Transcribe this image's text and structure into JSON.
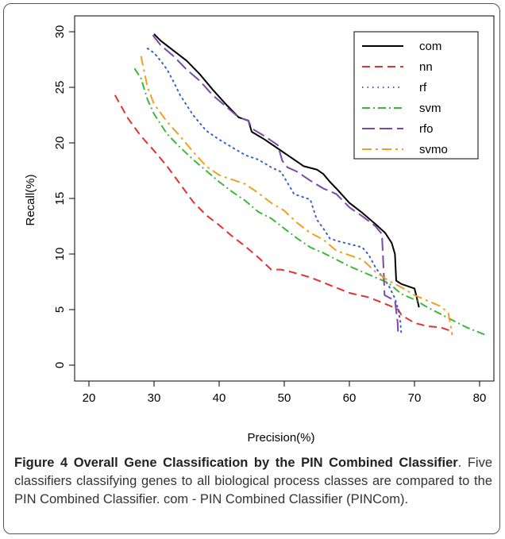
{
  "chart_data": {
    "type": "line",
    "xlabel": "Precision(%)",
    "ylabel": "Recall(%)",
    "xlim": [
      20,
      80
    ],
    "ylim": [
      0,
      30
    ],
    "x_ticks": [
      20,
      30,
      40,
      50,
      60,
      70,
      80
    ],
    "y_ticks": [
      0,
      5,
      10,
      15,
      20,
      25,
      30
    ],
    "legend_position": "top-right",
    "grid": false,
    "series": [
      {
        "name": "com",
        "color": "#000000",
        "dash": "solid",
        "x": [
          30,
          31,
          33,
          35,
          37,
          39,
          41,
          43,
          44.5,
          45,
          47,
          49,
          51,
          53,
          55,
          56,
          57,
          58,
          60,
          62,
          64,
          65.5,
          66.5,
          67,
          67.2,
          68,
          70,
          70.3,
          70.5,
          70.7
        ],
        "y": [
          29.8,
          29.2,
          28.3,
          27.4,
          26.2,
          24.8,
          23.5,
          22.3,
          22,
          21,
          20.3,
          19.5,
          18.7,
          17.9,
          17.6,
          17.2,
          16.5,
          15.9,
          14.6,
          13.7,
          12.7,
          11.9,
          11.0,
          10.0,
          7.6,
          7.3,
          6.9,
          6.2,
          5.7,
          5.2
        ]
      },
      {
        "name": "nn",
        "color": "#e53030",
        "dash": "10 6",
        "x": [
          24,
          26,
          28,
          30,
          32,
          34,
          36,
          38,
          40,
          42,
          44,
          46,
          48,
          49.5,
          51,
          54,
          57,
          60,
          63,
          66,
          67.5,
          68,
          70,
          72,
          74,
          76
        ],
        "y": [
          24.3,
          22.2,
          20.6,
          19.3,
          17.9,
          16.3,
          14.7,
          13.5,
          12.6,
          11.6,
          10.7,
          9.7,
          8.6,
          8.6,
          8.4,
          7.9,
          7.2,
          6.5,
          6.1,
          5.4,
          5.0,
          4.5,
          3.8,
          3.5,
          3.4,
          3.0
        ]
      },
      {
        "name": "rf",
        "color": "#3a5fcd",
        "dash": "1.5 5",
        "x": [
          29,
          30,
          31,
          32,
          33,
          34,
          36,
          38,
          40,
          42,
          44,
          46,
          48,
          49.5,
          50.5,
          51.5,
          52.5,
          54,
          55,
          56,
          57,
          58,
          60,
          62,
          63,
          64,
          65,
          66,
          67,
          67.5,
          67.8,
          68
        ],
        "y": [
          28.5,
          28.1,
          27.4,
          26.6,
          25.5,
          24.3,
          22.5,
          21.1,
          20.3,
          19.6,
          18.9,
          18.5,
          17.8,
          17.4,
          16.4,
          15.4,
          15.2,
          14.9,
          13.1,
          12.3,
          11.4,
          11.2,
          10.9,
          10.6,
          9.9,
          8.8,
          8.0,
          7.2,
          6.0,
          5.0,
          4.0,
          2.7
        ]
      },
      {
        "name": "svm",
        "color": "#3cb93c",
        "dash": "10 4 2 4",
        "x": [
          27,
          28,
          29,
          30,
          32,
          34,
          36,
          38,
          40,
          42,
          44,
          46,
          48,
          50,
          52,
          54,
          56,
          58,
          60,
          62,
          64,
          66,
          68,
          70,
          72,
          74,
          76,
          78,
          81
        ],
        "y": [
          26.7,
          25.8,
          23.9,
          22.6,
          20.8,
          19.6,
          18.5,
          17.5,
          16.5,
          15.6,
          14.8,
          13.8,
          13.2,
          12.3,
          11.4,
          10.6,
          10.1,
          9.5,
          8.9,
          8.4,
          7.9,
          7.4,
          6.4,
          5.9,
          5.2,
          4.6,
          4.0,
          3.4,
          2.7
        ]
      },
      {
        "name": "rfo",
        "color": "#7b48a8",
        "dash": "16 6",
        "x": [
          29.8,
          31,
          33,
          35,
          37,
          39,
          41,
          43,
          44.5,
          45,
          47,
          49,
          49.7,
          50.5,
          52,
          54,
          56,
          58,
          60,
          62,
          64,
          65,
          65.3,
          65.4,
          67,
          67.4,
          67.5
        ],
        "y": [
          29.7,
          28.8,
          27.8,
          26.6,
          25.6,
          24.3,
          23.3,
          22.3,
          22.0,
          21.3,
          20.6,
          19.8,
          18.4,
          17.8,
          17.4,
          16.6,
          15.9,
          15.4,
          14.2,
          13.4,
          12.5,
          11.8,
          8.0,
          6.3,
          5.8,
          3.9,
          2.7
        ]
      },
      {
        "name": "svmo",
        "color": "#f0a020",
        "dash": "12 5 3 5",
        "x": [
          28,
          29,
          30,
          32,
          34,
          36,
          38,
          40,
          42,
          44,
          46,
          48,
          50,
          52,
          54,
          56,
          58,
          60,
          62,
          64,
          66,
          68,
          70,
          72,
          74,
          75.2,
          75.5,
          75.8
        ],
        "y": [
          27.8,
          25.0,
          23.5,
          21.9,
          20.6,
          19.2,
          17.9,
          17.1,
          16.7,
          16.3,
          15.5,
          14.6,
          13.9,
          12.8,
          11.9,
          11.3,
          10.3,
          9.9,
          9.5,
          8.4,
          7.6,
          7.0,
          6.3,
          5.8,
          5.3,
          4.7,
          3.7,
          2.7
        ]
      }
    ]
  },
  "caption": {
    "title": "Figure 4 Overall Gene Classification by the PIN Combined Classifier",
    "body": ". Five classifiers classifying genes to all biological process classes are compared to the PIN Combined Classifier. com - PIN Combined Classifier (PINCom)."
  }
}
